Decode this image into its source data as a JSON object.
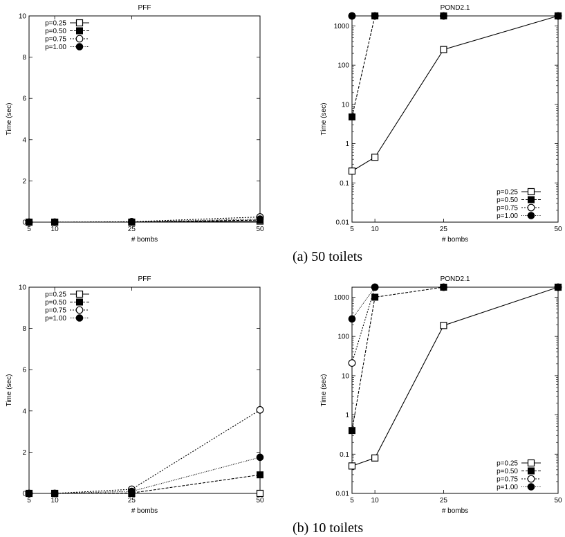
{
  "captions": [
    "(a) 50 toilets",
    "(b) 10 toilets"
  ],
  "chart_data": [
    {
      "type": "line",
      "title": "PFF",
      "xlabel": "# bombs",
      "ylabel": "Time (sec)",
      "x": [
        5,
        10,
        25,
        50
      ],
      "x_scale": "linear",
      "y_scale": "linear",
      "xlim": [
        5,
        50
      ],
      "ylim": [
        0,
        10
      ],
      "yticks": [
        0,
        2,
        4,
        6,
        8,
        10
      ],
      "legend_position": "top-left",
      "series": [
        {
          "name": "p=0.25",
          "marker": "open-square",
          "dash": "solid",
          "values": [
            0.0,
            0.0,
            0.0,
            0.05
          ]
        },
        {
          "name": "p=0.50",
          "marker": "filled-square",
          "dash": "dashed",
          "values": [
            0.0,
            0.0,
            0.0,
            0.1
          ]
        },
        {
          "name": "p=0.75",
          "marker": "open-circle",
          "dash": "dotted",
          "values": [
            0.0,
            0.0,
            0.02,
            0.25
          ]
        },
        {
          "name": "p=1.00",
          "marker": "filled-circle",
          "dash": "fine-dotted",
          "values": [
            0.0,
            0.0,
            0.01,
            0.15
          ]
        }
      ]
    },
    {
      "type": "line",
      "title": "POND2.1",
      "xlabel": "# bombs",
      "ylabel": "Time (sec)",
      "x": [
        5,
        10,
        25,
        50
      ],
      "x_scale": "linear",
      "y_scale": "log",
      "xlim": [
        5,
        50
      ],
      "ylim": [
        0.01,
        1800
      ],
      "yticks": [
        0.01,
        0.1,
        1,
        10,
        100,
        1000
      ],
      "ytick_labels": [
        "0.01",
        "0.1",
        "1",
        "10",
        "100",
        "1000"
      ],
      "legend_position": "bottom-right",
      "series": [
        {
          "name": "p=0.25",
          "marker": "open-square",
          "dash": "solid",
          "values": [
            0.2,
            0.45,
            250,
            1800
          ]
        },
        {
          "name": "p=0.50",
          "marker": "filled-square",
          "dash": "dashed",
          "values": [
            4.8,
            1800,
            1800,
            1800
          ]
        },
        {
          "name": "p=0.75",
          "marker": "open-circle",
          "dash": "dotted",
          "values": [
            1800,
            1800,
            1800,
            1800
          ]
        },
        {
          "name": "p=1.00",
          "marker": "filled-circle",
          "dash": "fine-dotted",
          "values": [
            1800,
            1800,
            1800,
            1800
          ]
        }
      ]
    },
    {
      "type": "line",
      "title": "PFF",
      "xlabel": "# bombs",
      "ylabel": "Time (sec)",
      "x": [
        5,
        10,
        25,
        50
      ],
      "x_scale": "linear",
      "y_scale": "linear",
      "xlim": [
        5,
        50
      ],
      "ylim": [
        0,
        10
      ],
      "yticks": [
        0,
        2,
        4,
        6,
        8,
        10
      ],
      "legend_position": "top-left",
      "series": [
        {
          "name": "p=0.25",
          "marker": "open-square",
          "dash": "solid",
          "values": [
            0.0,
            0.0,
            0.0,
            0.0
          ]
        },
        {
          "name": "p=0.50",
          "marker": "filled-square",
          "dash": "dashed",
          "values": [
            0.0,
            0.0,
            0.02,
            0.9
          ]
        },
        {
          "name": "p=0.75",
          "marker": "open-circle",
          "dash": "dotted",
          "values": [
            0.0,
            0.0,
            0.2,
            4.05
          ]
        },
        {
          "name": "p=1.00",
          "marker": "filled-circle",
          "dash": "fine-dotted",
          "values": [
            0.0,
            0.0,
            0.1,
            1.75
          ]
        }
      ]
    },
    {
      "type": "line",
      "title": "POND2.1",
      "xlabel": "# bombs",
      "ylabel": "Time (sec)",
      "x": [
        5,
        10,
        25,
        50
      ],
      "x_scale": "linear",
      "y_scale": "log",
      "xlim": [
        5,
        50
      ],
      "ylim": [
        0.01,
        1800
      ],
      "yticks": [
        0.01,
        0.1,
        1,
        10,
        100,
        1000
      ],
      "ytick_labels": [
        "0.01",
        "0.1",
        "1",
        "10",
        "100",
        "1000"
      ],
      "legend_position": "bottom-right",
      "series": [
        {
          "name": "p=0.25",
          "marker": "open-square",
          "dash": "solid",
          "values": [
            0.05,
            0.08,
            190,
            1800
          ]
        },
        {
          "name": "p=0.50",
          "marker": "filled-square",
          "dash": "dashed",
          "values": [
            0.4,
            1000,
            1800,
            1800
          ]
        },
        {
          "name": "p=0.75",
          "marker": "open-circle",
          "dash": "dotted",
          "values": [
            21,
            1800,
            1800,
            1800
          ]
        },
        {
          "name": "p=1.00",
          "marker": "filled-circle",
          "dash": "fine-dotted",
          "values": [
            280,
            1800,
            1800,
            1800
          ]
        }
      ]
    }
  ]
}
